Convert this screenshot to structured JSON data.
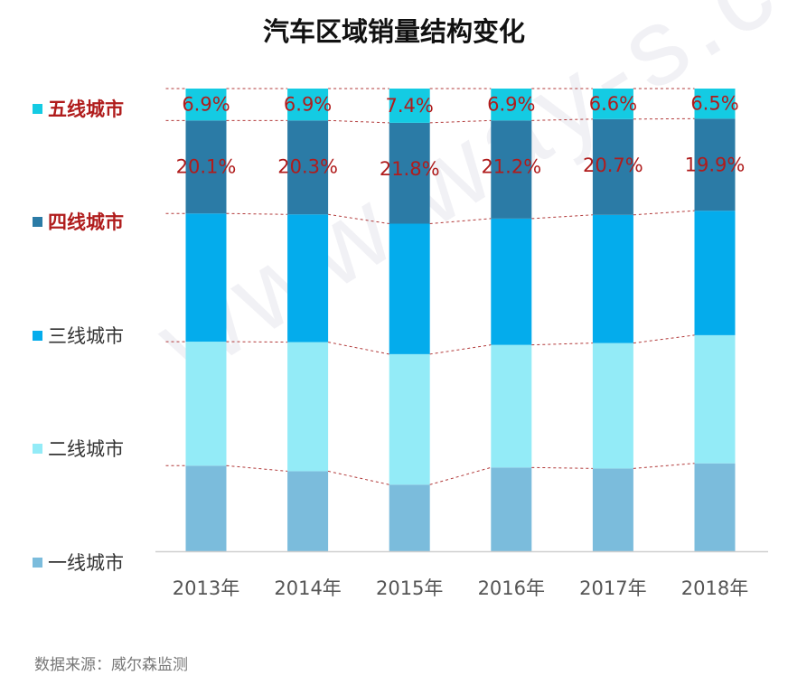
{
  "title": "汽车区域销量结构变化",
  "source": "数据来源：威尔森监测",
  "watermark": "www.way-s.cn",
  "colors": {
    "一线城市": "#7bbcdc",
    "二线城市": "#93ebf7",
    "三线城市": "#04acec",
    "四线城市": "#2b7ba6",
    "五线城市": "#14cbe3",
    "label_text": "#b01c1c",
    "connector": "#b23a3a"
  },
  "chart_data": {
    "type": "bar",
    "stacked": true,
    "normalized_to": 100,
    "title": "汽车区域销量结构变化",
    "categories": [
      "2013年",
      "2014年",
      "2015年",
      "2016年",
      "2017年",
      "2018年"
    ],
    "series": [
      {
        "name": "一线城市",
        "values": [
          18.5,
          17.3,
          14.4,
          18.1,
          17.9,
          19.0
        ],
        "highlight": false
      },
      {
        "name": "二线城市",
        "values": [
          26.8,
          27.9,
          28.2,
          26.5,
          27.1,
          27.7
        ],
        "highlight": false
      },
      {
        "name": "三线城市",
        "values": [
          27.7,
          27.6,
          28.2,
          27.3,
          27.7,
          26.9
        ],
        "highlight": false
      },
      {
        "name": "四线城市",
        "values": [
          20.1,
          20.3,
          21.8,
          21.2,
          20.7,
          19.9
        ],
        "highlight": true
      },
      {
        "name": "五线城市",
        "values": [
          6.9,
          6.9,
          7.4,
          6.9,
          6.6,
          6.5
        ],
        "highlight": true
      }
    ],
    "data_labels": {
      "四线城市": [
        "20.1%",
        "20.3%",
        "21.8%",
        "21.2%",
        "20.7%",
        "19.9%"
      ],
      "五线城市": [
        "6.9%",
        "6.9%",
        "7.4%",
        "6.9%",
        "6.6%",
        "6.5%"
      ]
    },
    "legend_order": [
      "五线城市",
      "四线城市",
      "三线城市",
      "二线城市",
      "一线城市"
    ],
    "legend_position": "left",
    "series_connectors": true,
    "ylim": [
      0,
      100
    ],
    "grid": false
  }
}
